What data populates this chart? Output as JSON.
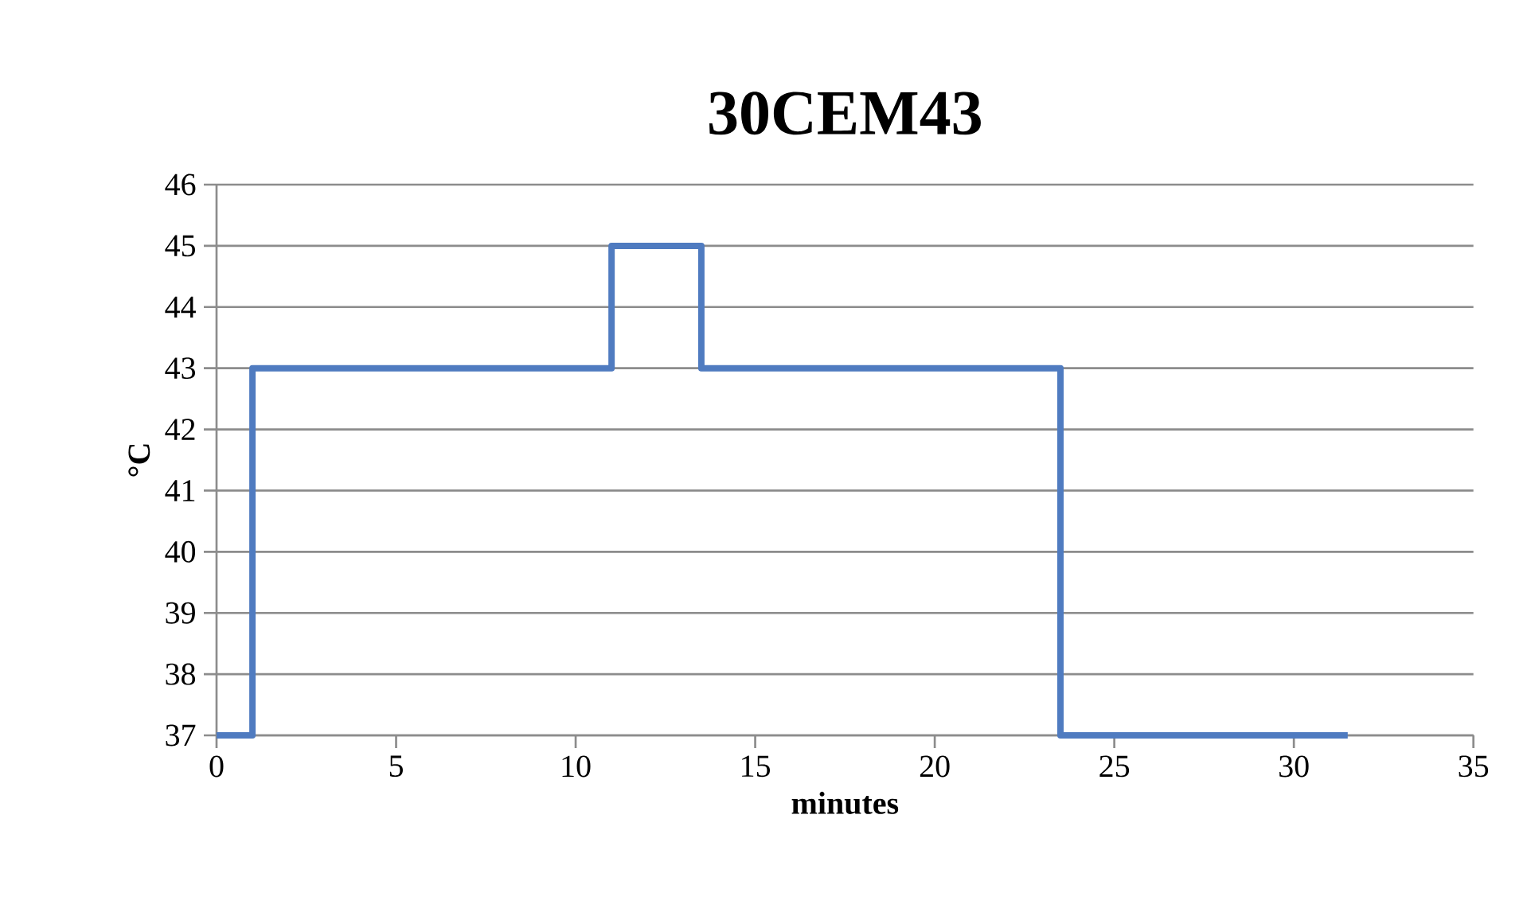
{
  "chart_data": {
    "type": "step",
    "title": "30CEM43",
    "xlabel": "minutes",
    "ylabel": "°C",
    "x": [
      0,
      1,
      11,
      13.5,
      23.5,
      31.5
    ],
    "series": [
      {
        "color": "#4f7bc0",
        "values": [
          37,
          43,
          45,
          43,
          37,
          37
        ]
      }
    ],
    "xlim": [
      0,
      35
    ],
    "xticks": [
      0,
      5,
      10,
      15,
      20,
      25,
      30,
      35
    ],
    "ylim": [
      37,
      46
    ],
    "yticks": [
      37,
      38,
      39,
      40,
      41,
      42,
      43,
      44,
      45,
      46
    ],
    "grid": "y"
  }
}
